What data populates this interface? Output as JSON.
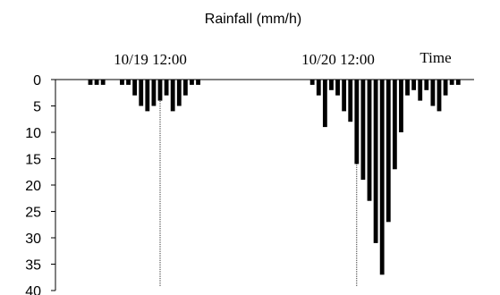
{
  "chart_data": {
    "type": "bar",
    "title": "Rainfall (mm/h)",
    "xlabel": "Time",
    "ylabel": "",
    "ylim": [
      0,
      40
    ],
    "y_axis": "inverted",
    "yticks": [
      "0",
      "5",
      "10",
      "15",
      "20",
      "25",
      "30",
      "35",
      "40"
    ],
    "time_markers": [
      "10/19 12:00",
      "10/20 12:00"
    ],
    "series": [
      {
        "values": [
          0,
          0,
          0,
          0,
          0,
          1,
          1,
          1,
          0,
          0,
          1,
          1,
          3,
          5,
          6,
          5,
          4,
          3,
          6,
          5,
          3,
          1,
          1,
          0,
          0,
          0,
          0,
          0,
          0,
          0,
          0,
          0,
          0,
          0,
          0,
          0,
          0,
          0,
          0,
          0,
          1,
          3,
          9,
          2,
          3,
          6,
          8,
          16,
          19,
          23,
          31,
          37,
          27,
          17,
          10,
          3,
          2,
          4,
          2,
          5,
          6,
          3,
          1,
          1,
          0,
          0
        ]
      }
    ],
    "marker_bar_index": [
      16,
      47
    ],
    "grid": false,
    "bar_color": "#000000"
  }
}
